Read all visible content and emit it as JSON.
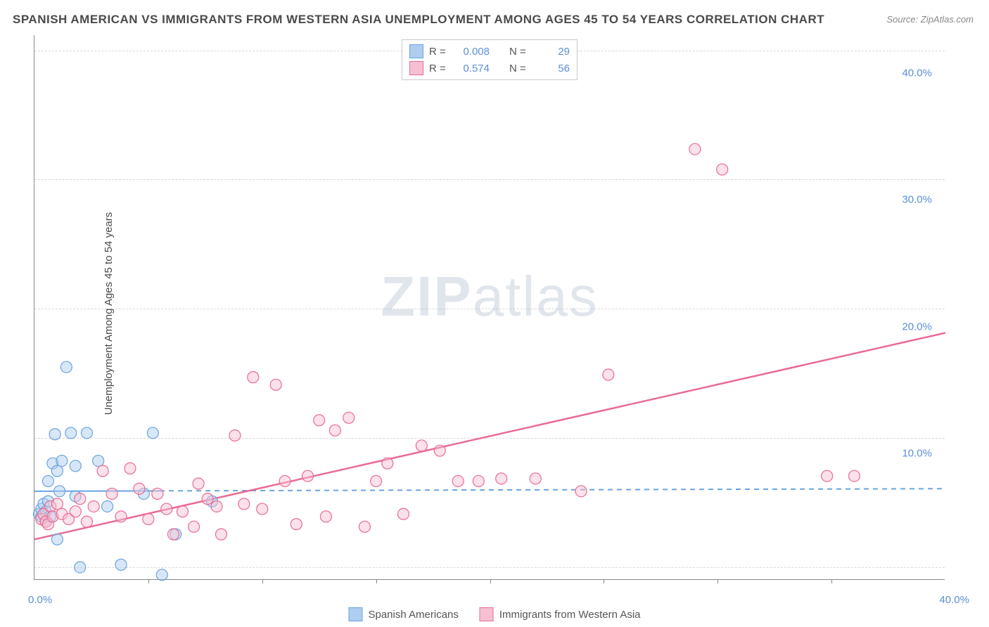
{
  "title": "SPANISH AMERICAN VS IMMIGRANTS FROM WESTERN ASIA UNEMPLOYMENT AMONG AGES 45 TO 54 YEARS CORRELATION CHART",
  "source": "Source: ZipAtlas.com",
  "y_axis_label": "Unemployment Among Ages 45 to 54 years",
  "watermark_bold": "ZIP",
  "watermark_light": "atlas",
  "chart": {
    "type": "scatter",
    "xlim": [
      0,
      40
    ],
    "ylim": [
      0,
      43
    ],
    "x_ticks": [
      0,
      40
    ],
    "x_tick_labels": [
      "0.0%",
      "40.0%"
    ],
    "x_minor_ticks": [
      5,
      10,
      15,
      20,
      25,
      30,
      35
    ],
    "y_gridlines": [
      1,
      11.2,
      21.4,
      31.6,
      41.8
    ],
    "y_tick_values": [
      10,
      20,
      30,
      40
    ],
    "y_tick_labels": [
      "10.0%",
      "20.0%",
      "30.0%",
      "40.0%"
    ],
    "background_color": "#ffffff",
    "grid_color": "#d8d8d8",
    "axis_color": "#888888",
    "tick_label_color": "#5b8fd6",
    "marker_radius": 8,
    "marker_stroke_width": 1.2,
    "marker_fill_opacity": 0.18,
    "series": [
      {
        "id": "spanish_americans",
        "label": "Spanish Americans",
        "color_stroke": "#6aa3e0",
        "color_fill": "#aecdef",
        "R": "0.008",
        "N": "29",
        "trend": {
          "x1": 0,
          "y1": 7.0,
          "x2": 40,
          "y2": 7.2,
          "dashed": true,
          "dash_split_x": 5.5,
          "width": 2
        },
        "points": [
          [
            0.2,
            5.2
          ],
          [
            0.3,
            5.0
          ],
          [
            0.3,
            5.6
          ],
          [
            0.4,
            6.0
          ],
          [
            0.5,
            4.6
          ],
          [
            0.5,
            5.4
          ],
          [
            0.6,
            6.2
          ],
          [
            0.6,
            7.8
          ],
          [
            0.7,
            5.0
          ],
          [
            0.8,
            9.2
          ],
          [
            0.9,
            11.5
          ],
          [
            1.0,
            3.2
          ],
          [
            1.0,
            8.6
          ],
          [
            1.1,
            7.0
          ],
          [
            1.2,
            9.4
          ],
          [
            1.4,
            16.8
          ],
          [
            1.6,
            11.6
          ],
          [
            1.8,
            6.6
          ],
          [
            1.8,
            9.0
          ],
          [
            2.0,
            1.0
          ],
          [
            2.3,
            11.6
          ],
          [
            2.8,
            9.4
          ],
          [
            3.2,
            5.8
          ],
          [
            3.8,
            1.2
          ],
          [
            4.8,
            6.8
          ],
          [
            5.2,
            11.6
          ],
          [
            5.6,
            0.4
          ],
          [
            6.2,
            3.6
          ],
          [
            7.8,
            6.2
          ]
        ]
      },
      {
        "id": "immigrants_western_asia",
        "label": "Immigrants from Western Asia",
        "color_stroke": "#e96b94",
        "color_fill": "#f6c0d2",
        "R": "0.574",
        "N": "56",
        "trend": {
          "x1": 0,
          "y1": 3.2,
          "x2": 40,
          "y2": 19.5,
          "dashed": false,
          "width": 2.5
        },
        "points": [
          [
            0.3,
            4.8
          ],
          [
            0.4,
            5.2
          ],
          [
            0.5,
            4.6
          ],
          [
            0.6,
            4.4
          ],
          [
            0.7,
            5.8
          ],
          [
            0.8,
            5.0
          ],
          [
            1.0,
            6.0
          ],
          [
            1.2,
            5.2
          ],
          [
            1.5,
            4.8
          ],
          [
            1.8,
            5.4
          ],
          [
            2.0,
            6.4
          ],
          [
            2.3,
            4.6
          ],
          [
            2.6,
            5.8
          ],
          [
            3.0,
            8.6
          ],
          [
            3.4,
            6.8
          ],
          [
            3.8,
            5.0
          ],
          [
            4.2,
            8.8
          ],
          [
            4.6,
            7.2
          ],
          [
            5.0,
            4.8
          ],
          [
            5.4,
            6.8
          ],
          [
            5.8,
            5.6
          ],
          [
            6.1,
            3.6
          ],
          [
            6.5,
            5.4
          ],
          [
            7.0,
            4.2
          ],
          [
            7.2,
            7.6
          ],
          [
            7.6,
            6.4
          ],
          [
            8.0,
            5.8
          ],
          [
            8.2,
            3.6
          ],
          [
            8.8,
            11.4
          ],
          [
            9.2,
            6.0
          ],
          [
            9.6,
            16.0
          ],
          [
            10.0,
            5.6
          ],
          [
            10.6,
            15.4
          ],
          [
            11.0,
            7.8
          ],
          [
            11.5,
            4.4
          ],
          [
            12.0,
            8.2
          ],
          [
            12.5,
            12.6
          ],
          [
            12.8,
            5.0
          ],
          [
            13.2,
            11.8
          ],
          [
            13.8,
            12.8
          ],
          [
            14.5,
            4.2
          ],
          [
            15.0,
            7.8
          ],
          [
            15.5,
            9.2
          ],
          [
            16.2,
            5.2
          ],
          [
            17.0,
            10.6
          ],
          [
            17.8,
            10.2
          ],
          [
            18.6,
            7.8
          ],
          [
            19.5,
            7.8
          ],
          [
            20.5,
            8.0
          ],
          [
            22.0,
            8.0
          ],
          [
            24.0,
            7.0
          ],
          [
            25.2,
            16.2
          ],
          [
            29.0,
            34.0
          ],
          [
            30.2,
            32.4
          ],
          [
            34.8,
            8.2
          ],
          [
            36.0,
            8.2
          ]
        ]
      }
    ]
  },
  "legend_top": {
    "r_label": "R =",
    "n_label": "N ="
  }
}
